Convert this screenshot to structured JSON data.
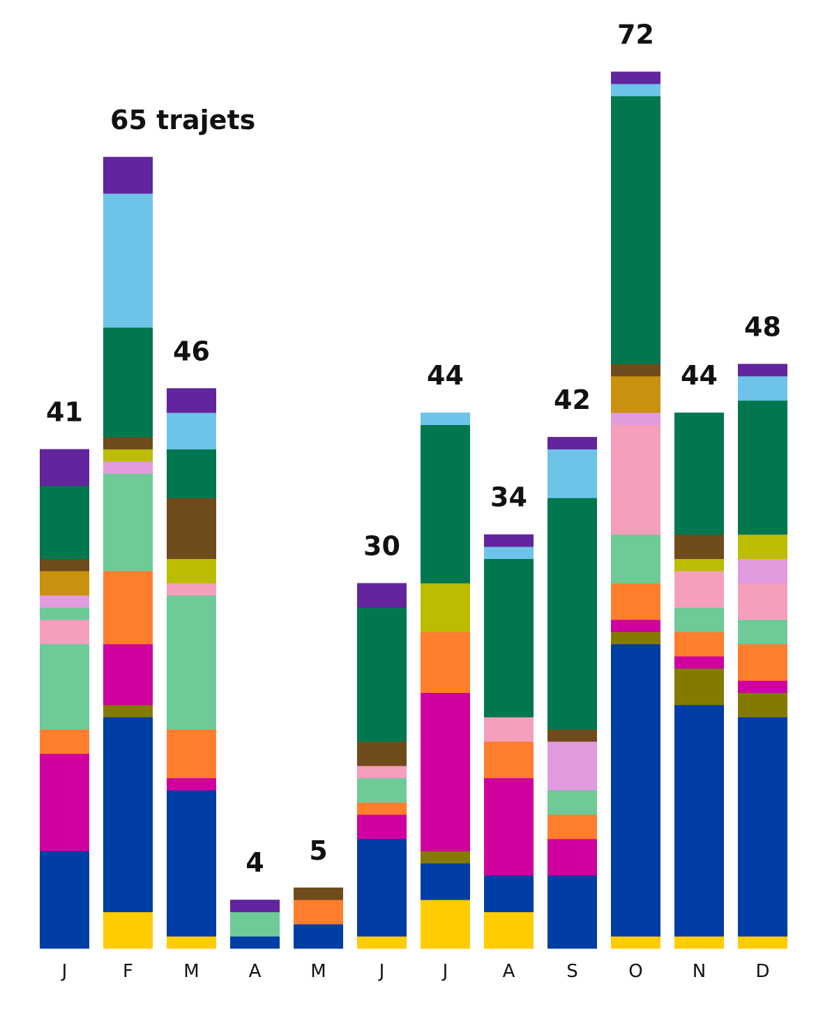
{
  "chart_data": {
    "type": "bar",
    "stacked": true,
    "title": "",
    "xlabel": "",
    "ylabel": "",
    "unit_label": "trajets",
    "ylim": [
      0,
      72
    ],
    "grid": false,
    "legend": "none",
    "categories": [
      "J",
      "F",
      "M",
      "A",
      "M",
      "J",
      "J",
      "A",
      "S",
      "O",
      "N",
      "D"
    ],
    "totals": [
      41,
      65,
      46,
      4,
      5,
      30,
      44,
      34,
      42,
      72,
      44,
      48
    ],
    "total_labels": [
      "41",
      "65 trajets",
      "46",
      "4",
      "5",
      "30",
      "44",
      "34",
      "42",
      "72",
      "44",
      "48"
    ],
    "palette": {
      "yellow": "#FFCC00",
      "blue": "#003DA5",
      "olive": "#857A00",
      "magenta": "#CF009E",
      "orange": "#FF7E2E",
      "lightgreen": "#6ECA97",
      "pink": "#F59FBC",
      "lilac": "#E19BDF",
      "gold": "#C9910D",
      "lime": "#BBBD00",
      "brown": "#704B1C",
      "darkgreen": "#00774F",
      "lightblue": "#6EC4E8",
      "purple": "#62259D"
    },
    "stacks": [
      [
        [
          "blue",
          8
        ],
        [
          "magenta",
          8
        ],
        [
          "orange",
          2
        ],
        [
          "lightgreen",
          7
        ],
        [
          "pink",
          2
        ],
        [
          "lightgreen",
          1
        ],
        [
          "lilac",
          1
        ],
        [
          "gold",
          2
        ],
        [
          "brown",
          1
        ],
        [
          "darkgreen",
          6
        ],
        [
          "purple",
          3
        ]
      ],
      [
        [
          "yellow",
          3
        ],
        [
          "blue",
          16
        ],
        [
          "olive",
          1
        ],
        [
          "magenta",
          5
        ],
        [
          "orange",
          6
        ],
        [
          "lightgreen",
          8
        ],
        [
          "lilac",
          1
        ],
        [
          "lime",
          1
        ],
        [
          "brown",
          1
        ],
        [
          "darkgreen",
          9
        ],
        [
          "lightblue",
          11
        ],
        [
          "purple",
          3
        ]
      ],
      [
        [
          "yellow",
          1
        ],
        [
          "blue",
          12
        ],
        [
          "magenta",
          1
        ],
        [
          "orange",
          4
        ],
        [
          "lightgreen",
          11
        ],
        [
          "pink",
          1
        ],
        [
          "lime",
          2
        ],
        [
          "brown",
          5
        ],
        [
          "darkgreen",
          4
        ],
        [
          "lightblue",
          3
        ],
        [
          "purple",
          2
        ]
      ],
      [
        [
          "blue",
          1
        ],
        [
          "lightgreen",
          2
        ],
        [
          "purple",
          1
        ]
      ],
      [
        [
          "blue",
          2
        ],
        [
          "orange",
          2
        ],
        [
          "brown",
          1
        ]
      ],
      [
        [
          "yellow",
          1
        ],
        [
          "blue",
          8
        ],
        [
          "magenta",
          2
        ],
        [
          "orange",
          1
        ],
        [
          "lightgreen",
          2
        ],
        [
          "pink",
          1
        ],
        [
          "brown",
          2
        ],
        [
          "darkgreen",
          11
        ],
        [
          "purple",
          2
        ]
      ],
      [
        [
          "yellow",
          4
        ],
        [
          "blue",
          3
        ],
        [
          "olive",
          1
        ],
        [
          "magenta",
          13
        ],
        [
          "orange",
          5
        ],
        [
          "lime",
          4
        ],
        [
          "darkgreen",
          13
        ],
        [
          "lightblue",
          1
        ]
      ],
      [
        [
          "yellow",
          3
        ],
        [
          "blue",
          3
        ],
        [
          "magenta",
          8
        ],
        [
          "orange",
          3
        ],
        [
          "pink",
          2
        ],
        [
          "darkgreen",
          13
        ],
        [
          "lightblue",
          1
        ],
        [
          "purple",
          1
        ]
      ],
      [
        [
          "blue",
          6
        ],
        [
          "magenta",
          3
        ],
        [
          "orange",
          2
        ],
        [
          "lightgreen",
          2
        ],
        [
          "lilac",
          4
        ],
        [
          "brown",
          1
        ],
        [
          "darkgreen",
          19
        ],
        [
          "lightblue",
          4
        ],
        [
          "purple",
          1
        ]
      ],
      [
        [
          "yellow",
          1
        ],
        [
          "blue",
          24
        ],
        [
          "olive",
          1
        ],
        [
          "magenta",
          1
        ],
        [
          "orange",
          3
        ],
        [
          "lightgreen",
          4
        ],
        [
          "pink",
          9
        ],
        [
          "lilac",
          1
        ],
        [
          "gold",
          3
        ],
        [
          "brown",
          1
        ],
        [
          "darkgreen",
          22
        ],
        [
          "lightblue",
          1
        ],
        [
          "purple",
          1
        ]
      ],
      [
        [
          "yellow",
          1
        ],
        [
          "blue",
          19
        ],
        [
          "olive",
          3
        ],
        [
          "magenta",
          1
        ],
        [
          "orange",
          2
        ],
        [
          "lightgreen",
          2
        ],
        [
          "pink",
          3
        ],
        [
          "lime",
          1
        ],
        [
          "brown",
          2
        ],
        [
          "darkgreen",
          10
        ]
      ],
      [
        [
          "yellow",
          1
        ],
        [
          "blue",
          18
        ],
        [
          "olive",
          2
        ],
        [
          "magenta",
          1
        ],
        [
          "orange",
          3
        ],
        [
          "lightgreen",
          2
        ],
        [
          "pink",
          3
        ],
        [
          "lilac",
          2
        ],
        [
          "lime",
          2
        ],
        [
          "darkgreen",
          11
        ],
        [
          "lightblue",
          2
        ],
        [
          "purple",
          1
        ]
      ]
    ]
  }
}
